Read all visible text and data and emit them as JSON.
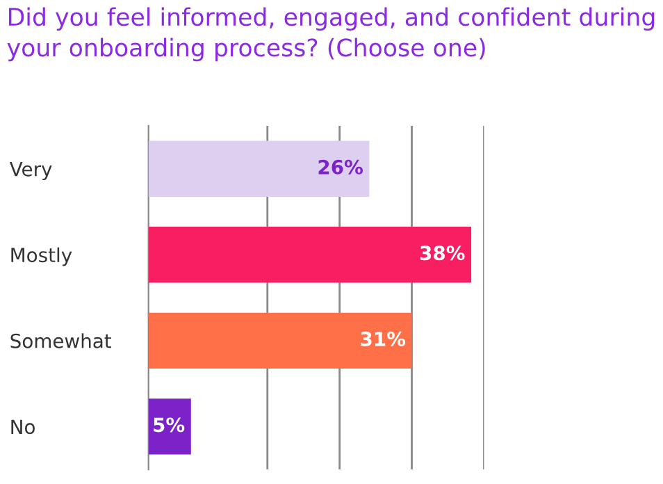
{
  "chart_data": {
    "type": "bar",
    "orientation": "horizontal",
    "title": "Did you feel informed, engaged, and confident during your onboarding process? (Choose one)",
    "categories": [
      "Very",
      "Mostly",
      "Somewhat",
      "No"
    ],
    "values": [
      26,
      38,
      31,
      5
    ],
    "colors": [
      "#dccff0",
      "#f81e62",
      "#ff6f48",
      "#7b22c8"
    ],
    "value_labels": [
      "26%",
      "38%",
      "31%",
      "5%"
    ],
    "xlim": [
      0,
      39.5
    ],
    "xticks": [
      {
        "value": 14,
        "label": null
      },
      {
        "value": 22.5,
        "label": null
      },
      {
        "value": 31,
        "label": null
      },
      {
        "value": 39.5,
        "label": null
      }
    ],
    "grid": "x",
    "legend": false
  }
}
